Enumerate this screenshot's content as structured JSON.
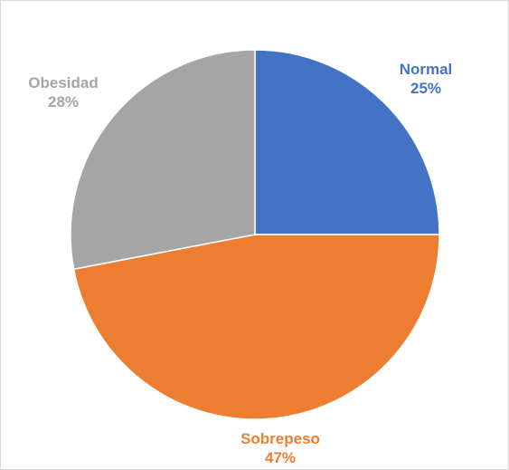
{
  "chart_data": {
    "type": "pie",
    "title": "",
    "legend": "none",
    "start_angle_deg": 0,
    "direction": "clockwise",
    "slices": [
      {
        "name": "Normal",
        "value": 25,
        "label": "25%",
        "color": "#4472c4"
      },
      {
        "name": "Sobrepeso",
        "value": 47,
        "label": "47%",
        "color": "#ed7d31"
      },
      {
        "name": "Obesidad",
        "value": 28,
        "label": "28%",
        "color": "#a5a5a5"
      }
    ]
  }
}
